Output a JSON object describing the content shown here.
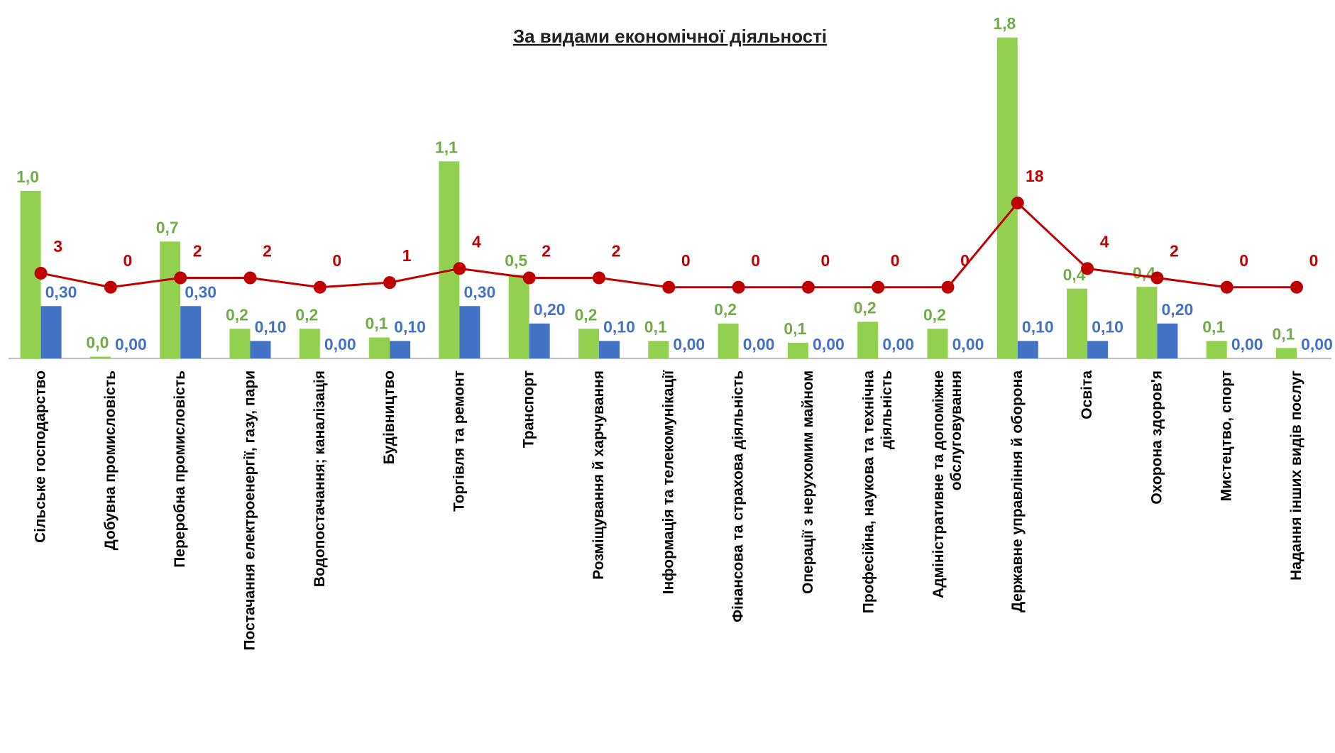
{
  "chart_data": {
    "type": "bar",
    "subtitle": "За видами економічної діяльності",
    "categories": [
      "Сільське господарство",
      "Добувна промисловість",
      "Переробна промисловість",
      "Постачання електроенергії, газу, пари",
      "Водопостачання; каналізація",
      "Будівництво",
      "Торгівля та ремонт",
      "Транспорт",
      "Розміщування й харчування",
      "Інформація та телекомунікації",
      "Фінансова та страхова діяльність",
      "Операції з нерухомим майном",
      "Професійна, наукова та технічна\nдіяльність",
      "Адміністративне та допоміжне\nобслуговування",
      "Державне управління й оборона",
      "Освіта",
      "Охорона здоров'я",
      "Мистецтво, спорт",
      "Надання інших видів послуг"
    ],
    "ylim": [
      0,
      1.9
    ],
    "y2lim": [
      -15.2,
      55.6
    ],
    "series": [
      {
        "type": "bar",
        "color": "#92d050",
        "label_color": "#70ad47",
        "values": [
          0.96,
          0.01,
          0.67,
          0.17,
          0.17,
          0.12,
          1.13,
          0.48,
          0.17,
          0.1,
          0.2,
          0.09,
          0.21,
          0.17,
          1.84,
          0.4,
          0.41,
          0.1,
          0.06
        ],
        "value_labels": [
          "1,0",
          "0,0",
          "0,7",
          "0,2",
          "0,2",
          "0,1",
          "1,1",
          "0,5",
          "0,2",
          "0,1",
          "0,2",
          "0,1",
          "0,2",
          "0,2",
          "1,8",
          "0,4",
          "0,4",
          "0,1",
          "0,1"
        ]
      },
      {
        "type": "bar",
        "color": "#4472c4",
        "label_color": "#4472c4",
        "values": [
          0.3,
          0,
          0.3,
          0.1,
          0,
          0.1,
          0.3,
          0.2,
          0.1,
          0,
          0,
          0,
          0,
          0,
          0.1,
          0.1,
          0.2,
          0,
          0
        ],
        "value_labels": [
          "0,30",
          "0,00",
          "0,30",
          "0,10",
          "0,00",
          "0,10",
          "0,30",
          "0,20",
          "0,10",
          "0,00",
          "0,00",
          "0,00",
          "0,00",
          "0,00",
          "0,10",
          "0,10",
          "0,20",
          "0,00",
          "0,00"
        ]
      },
      {
        "type": "line",
        "axis": "y2",
        "color": "#c00000",
        "label_color": "#c00000",
        "values": [
          3,
          0,
          2,
          2,
          0,
          1,
          4,
          2,
          2,
          0,
          0,
          0,
          0,
          0,
          18,
          4,
          2,
          0,
          0
        ]
      }
    ]
  }
}
